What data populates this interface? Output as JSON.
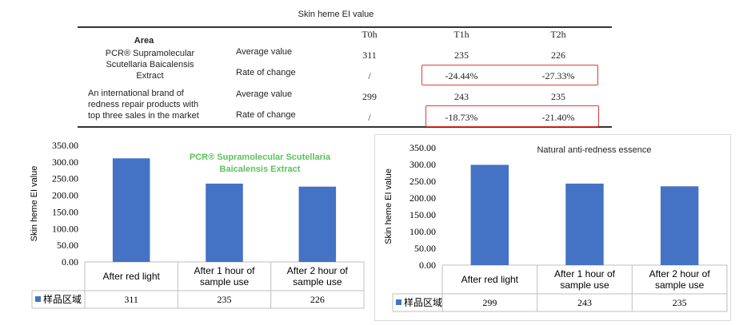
{
  "table": {
    "title": "Skin heme EI value",
    "area_header": "Area",
    "columns": [
      "T0h",
      "T1h",
      "T2h"
    ],
    "rows": [
      {
        "area": "PCR® Supramolecular Scutellaria Baicalensis Extract",
        "area_lines": [
          "PCR® Supramolecular",
          "Scutellaria Baicalensis",
          "Extract"
        ],
        "metrics": [
          {
            "label": "Average value",
            "values": [
              "311",
              "235",
              "226"
            ]
          },
          {
            "label": "Rate of change",
            "values": [
              "/",
              "-24.44%",
              "-27.33%"
            ]
          }
        ]
      },
      {
        "area": "An international brand of redness repair products with top three sales in the market",
        "area_lines": [
          "An international brand of",
          "redness repair products with",
          "top three sales in the market"
        ],
        "metrics": [
          {
            "label": "Average value",
            "values": [
              "299",
              "243",
              "235"
            ]
          },
          {
            "label": "Rate of change",
            "values": [
              "/",
              "-18.73%",
              "-21.40%"
            ]
          }
        ]
      }
    ],
    "highlight_color": "#e53935"
  },
  "chart_data": [
    {
      "type": "bar",
      "title": "PCR® Supramolecular Scutellaria Baicalensis Extract",
      "title_lines": [
        "PCR® Supramolecular Scutellaria",
        "Baicalensis Extract"
      ],
      "title_color": "#5cc15c",
      "ylabel": "Skin heme EI value",
      "xlabel": "",
      "categories": [
        "After red light",
        "After 1 hour of sample use",
        "After 2 hour of sample use"
      ],
      "category_lines": [
        [
          "After red light"
        ],
        [
          "After 1 hour of",
          "sample use"
        ],
        [
          "After 2 hour of",
          "sample use"
        ]
      ],
      "series": [
        {
          "name": "样品区域",
          "values": [
            311,
            235,
            226
          ],
          "color": "#4472c4"
        }
      ],
      "ylim": [
        0,
        350
      ],
      "yticks": [
        "0.00",
        "50.00",
        "100.00",
        "150.00",
        "200.00",
        "250.00",
        "300.00",
        "350.00"
      ],
      "data_table": [
        "311",
        "235",
        "226"
      ],
      "grid": false,
      "legend": "data-table"
    },
    {
      "type": "bar",
      "title": "Natural anti-redness essence",
      "title_lines": [
        "Natural anti-redness essence"
      ],
      "title_color": "#222222",
      "ylabel": "Skin heme EI value",
      "xlabel": "",
      "categories": [
        "After red light",
        "After 1 hour of sample use",
        "After 2 hour of sample use"
      ],
      "category_lines": [
        [
          "After red light"
        ],
        [
          "After 1 hour of",
          "sample use"
        ],
        [
          "After 2 hour of",
          "sample use"
        ]
      ],
      "series": [
        {
          "name": "样品区域",
          "values": [
            299,
            243,
            235
          ],
          "color": "#4472c4"
        }
      ],
      "ylim": [
        0,
        350
      ],
      "yticks": [
        "0.00",
        "50.00",
        "100.00",
        "150.00",
        "200.00",
        "250.00",
        "300.00",
        "350.00"
      ],
      "data_table": [
        "299",
        "243",
        "235"
      ],
      "grid": false,
      "legend": "data-table"
    }
  ]
}
